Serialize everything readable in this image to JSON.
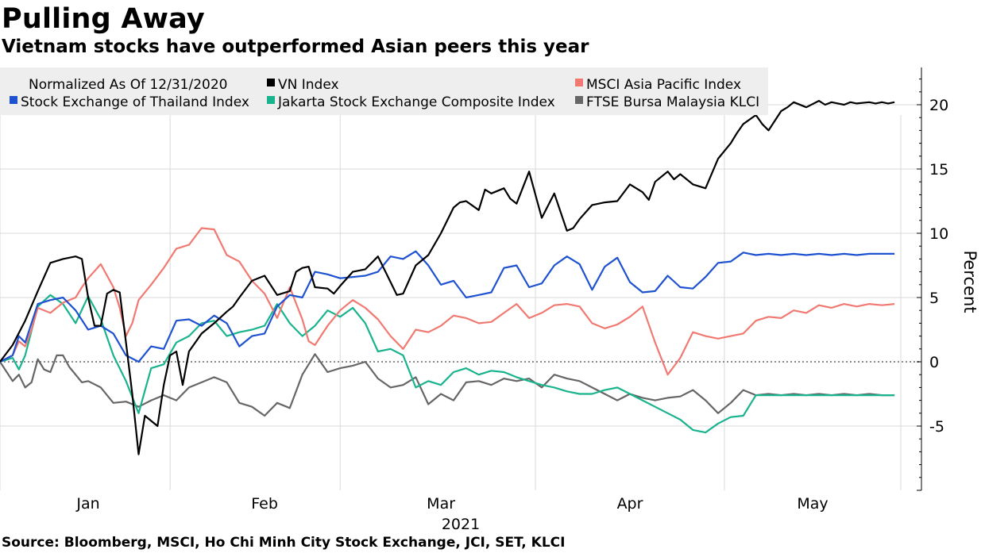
{
  "title": "Pulling Away",
  "subtitle": "Vietnam stocks have outperformed Asian peers this year",
  "source": "Source: Bloomberg, MSCI, Ho Chi Minh City Stock Exchange, JCI, SET, KLCI",
  "chart_data": {
    "type": "line",
    "legend_header": "Normalized As Of 12/31/2020",
    "ylabel": "Percent",
    "ylim": [
      -10,
      23
    ],
    "yticks": [
      -5,
      0,
      5,
      10,
      15,
      20
    ],
    "ytick_labels": [
      "-5",
      "0",
      "5",
      "10",
      "15",
      "20"
    ],
    "xlabel": "2021",
    "x_range_days": [
      0,
      143
    ],
    "month_labels": [
      {
        "label": "Jan",
        "day": 14
      },
      {
        "label": "Feb",
        "day": 42
      },
      {
        "label": "Mar",
        "day": 70
      },
      {
        "label": "Apr",
        "day": 100
      },
      {
        "label": "May",
        "day": 129
      }
    ],
    "month_boundaries": [
      0,
      27,
      54,
      85,
      115,
      143
    ],
    "reference_line": 0,
    "series": [
      {
        "name": "VN Index",
        "color": "#000000",
        "days": [
          0,
          2,
          4,
          6,
          8,
          10,
          12,
          13,
          14,
          15,
          16,
          17,
          18,
          19,
          20,
          21,
          22,
          23,
          25,
          26,
          27,
          28,
          29,
          30,
          31,
          32,
          34,
          36,
          37,
          38,
          40,
          42,
          44,
          46,
          47,
          48,
          49,
          50,
          52,
          53,
          54,
          56,
          58,
          60,
          62,
          63,
          64,
          66,
          68,
          70,
          72,
          73,
          74,
          76,
          77,
          78,
          80,
          81,
          82,
          84,
          86,
          88,
          90,
          91,
          92,
          94,
          96,
          98,
          100,
          102,
          103,
          104,
          106,
          107,
          108,
          110,
          112,
          114,
          116,
          117,
          118,
          120,
          121,
          122,
          124,
          125,
          126,
          128,
          130,
          131,
          132,
          134,
          135,
          136,
          138,
          139,
          140,
          141,
          142
        ],
        "values": [
          0,
          1.3,
          3.2,
          5.5,
          7.7,
          8.0,
          8.2,
          8.0,
          5.0,
          2.8,
          2.8,
          5.3,
          5.6,
          5.4,
          1.5,
          -2.5,
          -7.2,
          -4.2,
          -5.0,
          -1.8,
          0.5,
          0.8,
          -1.8,
          0.8,
          1.5,
          2.2,
          3.0,
          3.9,
          4.3,
          5.0,
          6.3,
          6.7,
          5.2,
          5.5,
          7.0,
          7.3,
          7.4,
          5.8,
          5.7,
          5.3,
          5.9,
          7.0,
          7.2,
          8.2,
          6.2,
          5.2,
          5.3,
          7.5,
          8.3,
          10.0,
          12.0,
          12.4,
          12.5,
          11.8,
          13.4,
          13.1,
          13.5,
          12.7,
          12.3,
          14.8,
          11.2,
          13.1,
          10.2,
          10.4,
          11.1,
          12.2,
          12.4,
          12.5,
          13.8,
          13.2,
          12.6,
          14.0,
          14.8,
          14.2,
          14.6,
          13.8,
          13.5,
          15.8,
          17.0,
          17.8,
          18.5,
          19.2,
          18.5,
          18.0,
          19.5,
          19.8,
          20.2,
          19.8,
          20.3,
          20.0,
          20.2,
          20.0,
          20.2,
          20.1,
          20.2,
          20.1,
          20.2,
          20.1,
          20.2
        ]
      },
      {
        "name": "MSCI Asia Pacific Index",
        "color": "#f07a72",
        "days": [
          0,
          2,
          3,
          4,
          5,
          6,
          8,
          10,
          12,
          13,
          14,
          16,
          18,
          19,
          20,
          21,
          22,
          24,
          26,
          28,
          30,
          32,
          34,
          36,
          38,
          40,
          42,
          44,
          46,
          48,
          49,
          50,
          52,
          54,
          56,
          58,
          60,
          62,
          64,
          66,
          68,
          70,
          72,
          74,
          76,
          78,
          80,
          82,
          84,
          86,
          88,
          90,
          92,
          94,
          96,
          98,
          100,
          102,
          104,
          106,
          108,
          110,
          112,
          114,
          116,
          118,
          120,
          122,
          124,
          126,
          128,
          130,
          132,
          134,
          136,
          138,
          140,
          142
        ],
        "values": [
          0,
          0.5,
          1.6,
          1.2,
          2.5,
          4.2,
          3.8,
          4.6,
          5.0,
          5.8,
          6.5,
          7.6,
          5.8,
          4.2,
          2.0,
          3.0,
          4.8,
          6.0,
          7.3,
          8.8,
          9.1,
          10.4,
          10.3,
          8.3,
          7.8,
          6.3,
          5.3,
          3.4,
          5.8,
          3.3,
          1.6,
          1.3,
          2.8,
          4.0,
          4.8,
          4.2,
          3.3,
          2.0,
          1.0,
          2.5,
          2.3,
          2.8,
          3.6,
          3.4,
          3.0,
          3.1,
          3.8,
          4.5,
          3.4,
          3.8,
          4.4,
          4.5,
          4.3,
          3.0,
          2.6,
          2.9,
          3.5,
          4.3,
          1.5,
          -1.0,
          0.3,
          2.3,
          2.0,
          1.8,
          2.0,
          2.2,
          3.2,
          3.5,
          3.4,
          4.0,
          3.8,
          4.4,
          4.2,
          4.5,
          4.3,
          4.5,
          4.4,
          4.5
        ]
      },
      {
        "name": "Stock Exchange of Thailand Index",
        "color": "#1f52d0",
        "days": [
          0,
          2,
          3,
          4,
          6,
          8,
          10,
          12,
          14,
          16,
          18,
          20,
          22,
          24,
          26,
          28,
          30,
          32,
          34,
          36,
          38,
          40,
          42,
          44,
          46,
          48,
          50,
          52,
          54,
          56,
          58,
          60,
          62,
          64,
          66,
          68,
          70,
          72,
          74,
          76,
          78,
          80,
          82,
          84,
          86,
          88,
          90,
          92,
          94,
          96,
          98,
          100,
          102,
          104,
          106,
          108,
          110,
          112,
          114,
          116,
          118,
          120,
          122,
          124,
          126,
          128,
          130,
          132,
          134,
          136,
          138,
          140,
          142
        ],
        "values": [
          0,
          0.5,
          2.0,
          1.5,
          4.5,
          4.8,
          5.0,
          4.0,
          2.5,
          2.8,
          2.2,
          0.5,
          0.0,
          1.2,
          1.0,
          3.2,
          3.3,
          2.8,
          3.6,
          3.0,
          1.2,
          2.0,
          2.2,
          4.3,
          5.2,
          5.0,
          7.0,
          6.8,
          6.5,
          6.6,
          6.7,
          7.0,
          8.2,
          8.0,
          8.6,
          7.5,
          6.0,
          6.3,
          5.0,
          5.2,
          5.4,
          7.3,
          7.5,
          5.8,
          6.1,
          7.5,
          8.2,
          7.6,
          5.6,
          7.4,
          8.1,
          6.2,
          5.4,
          5.5,
          6.7,
          5.8,
          5.7,
          6.6,
          7.7,
          7.8,
          8.5,
          8.3,
          8.4,
          8.3,
          8.4,
          8.3,
          8.4,
          8.3,
          8.4,
          8.3,
          8.4,
          8.4,
          8.4
        ]
      },
      {
        "name": "Jakarta Stock Exchange Composite Index",
        "color": "#19b38e",
        "days": [
          0,
          2,
          3,
          4,
          6,
          8,
          10,
          12,
          14,
          16,
          18,
          20,
          22,
          24,
          26,
          28,
          30,
          32,
          34,
          36,
          38,
          40,
          42,
          44,
          46,
          48,
          50,
          52,
          54,
          56,
          58,
          60,
          62,
          64,
          66,
          68,
          70,
          72,
          74,
          76,
          78,
          80,
          82,
          84,
          86,
          88,
          90,
          92,
          94,
          96,
          98,
          100,
          102,
          104,
          106,
          108,
          110,
          112,
          114,
          116,
          118,
          120,
          122,
          124,
          126,
          128,
          130,
          132,
          134,
          136,
          138,
          140,
          142
        ],
        "values": [
          0,
          0.3,
          -0.6,
          0.5,
          4.3,
          5.2,
          4.5,
          3.0,
          5.1,
          3.3,
          0.5,
          -1.5,
          -4.0,
          -0.5,
          -0.2,
          1.5,
          2.0,
          3.0,
          3.2,
          2.0,
          2.3,
          2.5,
          2.8,
          4.5,
          3.0,
          2.0,
          2.8,
          4.0,
          3.5,
          4.2,
          3.0,
          0.8,
          1.0,
          0.5,
          -2.0,
          -1.5,
          -1.8,
          -0.8,
          -0.5,
          -1.0,
          -0.7,
          -0.8,
          -1.2,
          -1.5,
          -1.8,
          -2.0,
          -2.3,
          -2.5,
          -2.5,
          -2.2,
          -2.0,
          -2.5,
          -3.0,
          -3.5,
          -4.0,
          -4.5,
          -5.3,
          -5.5,
          -4.8,
          -4.3,
          -4.2,
          -2.6,
          -2.6,
          -2.6,
          -2.6,
          -2.6,
          -2.6,
          -2.6,
          -2.6,
          -2.6,
          -2.6,
          -2.6,
          -2.6
        ]
      },
      {
        "name": "FTSE Bursa Malaysia KLCI",
        "color": "#666666",
        "days": [
          0,
          2,
          3,
          4,
          5,
          6,
          7,
          8,
          9,
          10,
          11,
          12,
          13,
          14,
          16,
          18,
          20,
          22,
          24,
          26,
          28,
          30,
          32,
          34,
          36,
          38,
          40,
          42,
          44,
          46,
          48,
          50,
          52,
          54,
          56,
          58,
          60,
          62,
          64,
          66,
          68,
          70,
          72,
          74,
          76,
          78,
          80,
          82,
          84,
          86,
          88,
          90,
          92,
          94,
          96,
          98,
          100,
          102,
          104,
          106,
          108,
          110,
          112,
          114,
          116,
          118,
          120,
          122,
          124,
          126,
          128,
          130,
          132,
          134,
          136,
          138,
          140,
          142
        ],
        "values": [
          0,
          -1.5,
          -1.0,
          -2.0,
          -1.6,
          0.2,
          -0.6,
          -0.8,
          0.5,
          0.5,
          -0.4,
          -1.0,
          -1.6,
          -1.5,
          -2.0,
          -3.2,
          -3.1,
          -3.5,
          -3.0,
          -2.6,
          -3.0,
          -2.0,
          -1.6,
          -1.2,
          -1.6,
          -3.2,
          -3.5,
          -4.2,
          -3.2,
          -3.6,
          -1.0,
          0.6,
          -0.8,
          -0.5,
          -0.3,
          0.0,
          -1.3,
          -2.0,
          -1.8,
          -1.2,
          -3.3,
          -2.5,
          -3.0,
          -1.6,
          -1.5,
          -1.8,
          -1.3,
          -1.5,
          -1.3,
          -2.0,
          -1.0,
          -1.3,
          -1.5,
          -2.0,
          -2.5,
          -3.0,
          -2.5,
          -2.8,
          -3.0,
          -2.8,
          -2.7,
          -2.2,
          -3.0,
          -4.0,
          -3.2,
          -2.2,
          -2.6,
          -2.5,
          -2.6,
          -2.5,
          -2.6,
          -2.5,
          -2.6,
          -2.5,
          -2.6,
          -2.5,
          -2.6,
          -2.6
        ]
      }
    ]
  }
}
